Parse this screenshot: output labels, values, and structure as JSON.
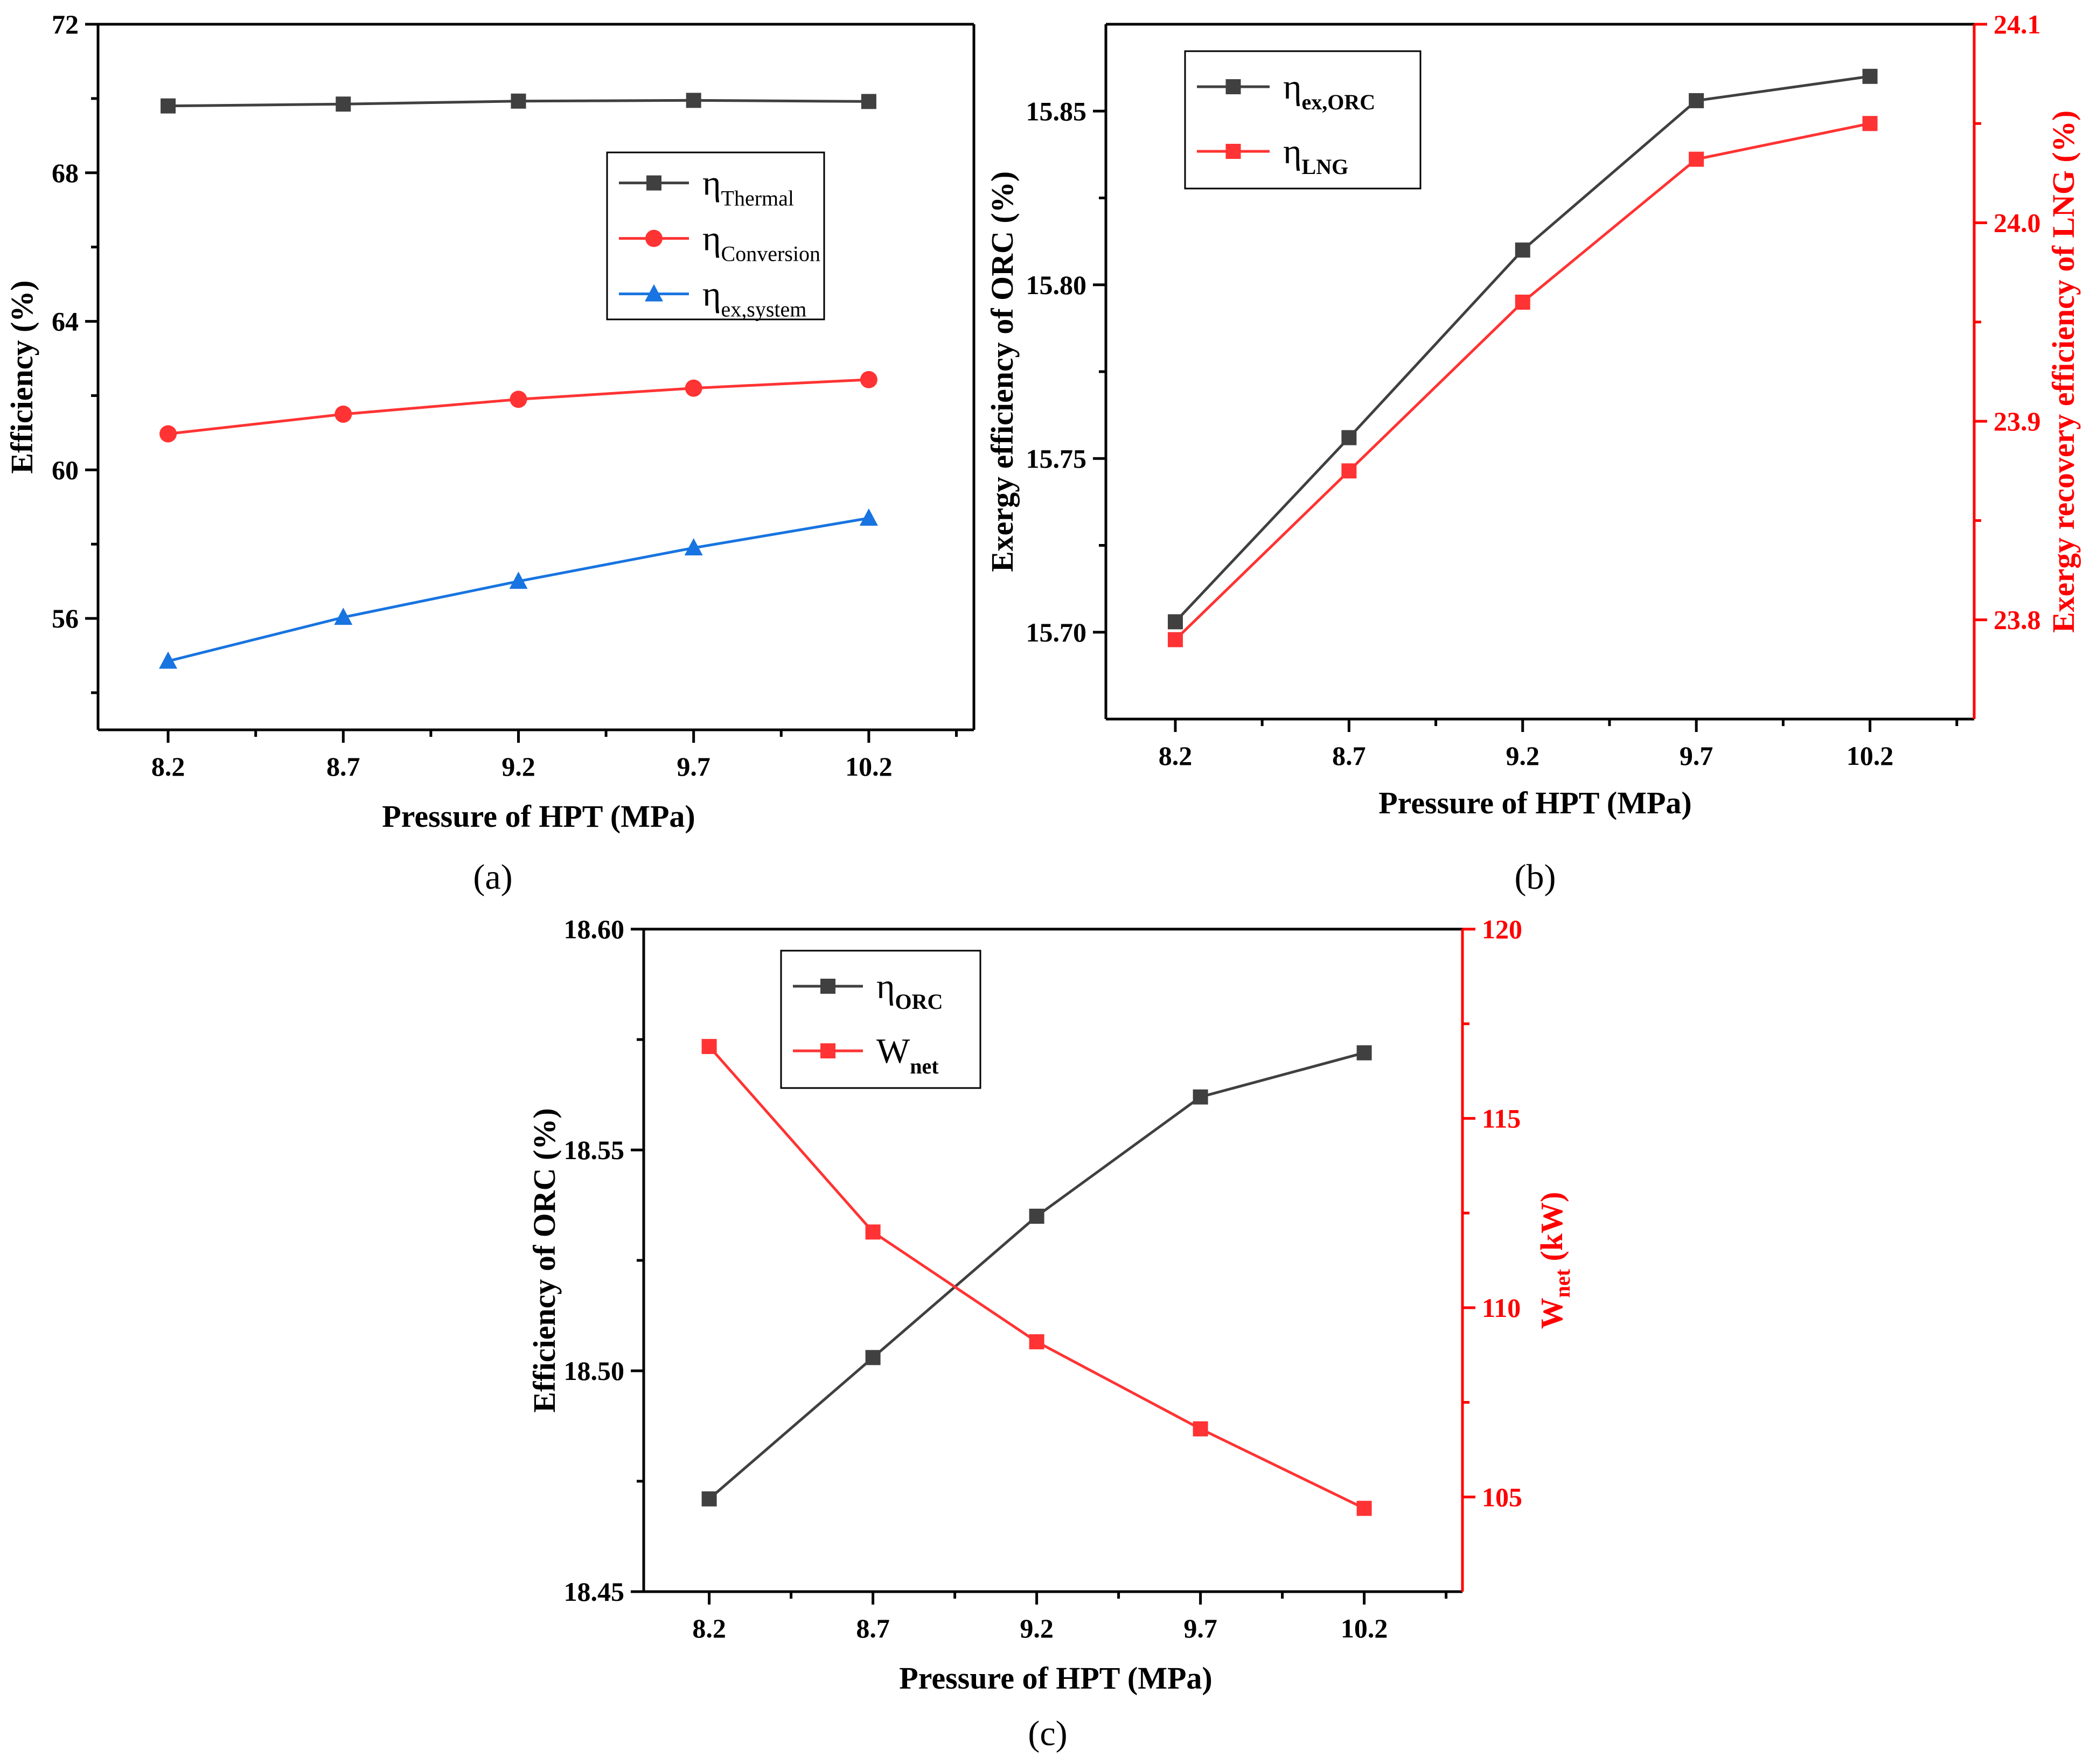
{
  "chart_data": [
    {
      "panel": "(a)",
      "type": "line",
      "xlabel": "Pressure of HPT (MPa)",
      "ylabel": "Efficiency (%)",
      "categories": [
        "8.2",
        "8.7",
        "9.2",
        "9.7",
        "10.2"
      ],
      "x": [
        8.2,
        8.7,
        9.2,
        9.7,
        10.2
      ],
      "xlim": [
        8.0,
        10.5
      ],
      "ylim": [
        53,
        72
      ],
      "yticks": [
        "56",
        "60",
        "64",
        "68",
        "72"
      ],
      "series": [
        {
          "name": "η",
          "sub": "Thermal",
          "color": "#404040",
          "marker": "square",
          "values": [
            69.8,
            69.85,
            69.93,
            69.95,
            69.92
          ]
        },
        {
          "name": "η",
          "sub": "Conversion",
          "color": "#ff3333",
          "marker": "circle",
          "values": [
            60.97,
            61.5,
            61.9,
            62.2,
            62.43
          ]
        },
        {
          "name": "η",
          "sub": "ex,system",
          "color": "#1874e0",
          "marker": "triangle",
          "values": [
            54.85,
            56.03,
            57.0,
            57.9,
            58.7
          ]
        }
      ]
    },
    {
      "panel": "(b)",
      "type": "line",
      "xlabel": "Pressure of HPT (MPa)",
      "ylabel": "Exergy efficiency of ORC (%)",
      "y2label": "Exergy recovery efficiency of LNG (%)",
      "categories": [
        "8.2",
        "8.7",
        "9.2",
        "9.7",
        "10.2"
      ],
      "x": [
        8.2,
        8.7,
        9.2,
        9.7,
        10.2
      ],
      "xlim": [
        8.0,
        10.5
      ],
      "ylim": [
        15.675,
        15.875
      ],
      "yticks": [
        "15.70",
        "15.75",
        "15.80",
        "15.85"
      ],
      "y2lim": [
        23.75,
        24.1
      ],
      "y2ticks": [
        "23.8",
        "23.9",
        "24.0",
        "24.1"
      ],
      "series": [
        {
          "name": "η",
          "sub": "ex,ORC",
          "axis": "left",
          "color": "#404040",
          "marker": "square",
          "values": [
            15.703,
            15.756,
            15.81,
            15.853,
            15.86
          ]
        },
        {
          "name": "η",
          "sub": "LNG",
          "axis": "right",
          "color": "#ff3333",
          "marker": "square",
          "values": [
            23.79,
            23.875,
            23.96,
            24.032,
            24.05
          ]
        }
      ]
    },
    {
      "panel": "(c)",
      "type": "line",
      "xlabel": "Pressure of HPT (MPa)",
      "ylabel": "Efficiency of ORC (%)",
      "y2label_main": "W",
      "y2label_sub": "net",
      "y2label_unit": " (kW)",
      "categories": [
        "8.2",
        "8.7",
        "9.2",
        "9.7",
        "10.2"
      ],
      "x": [
        8.2,
        8.7,
        9.2,
        9.7,
        10.2
      ],
      "xlim": [
        8.0,
        10.5
      ],
      "ylim": [
        18.45,
        18.6
      ],
      "yticks": [
        "18.45",
        "18.50",
        "18.55",
        "18.60"
      ],
      "y2lim": [
        102.5,
        120
      ],
      "y2ticks": [
        "105",
        "110",
        "115",
        "120"
      ],
      "series": [
        {
          "name": "η",
          "sub": "ORC",
          "axis": "left",
          "color": "#404040",
          "marker": "square",
          "values": [
            18.471,
            18.503,
            18.535,
            18.562,
            18.572
          ]
        },
        {
          "name": "W",
          "sub": "net",
          "axis": "right",
          "color": "#ff3333",
          "marker": "square",
          "values": [
            116.9,
            112.0,
            109.1,
            106.8,
            104.7
          ]
        }
      ]
    }
  ]
}
